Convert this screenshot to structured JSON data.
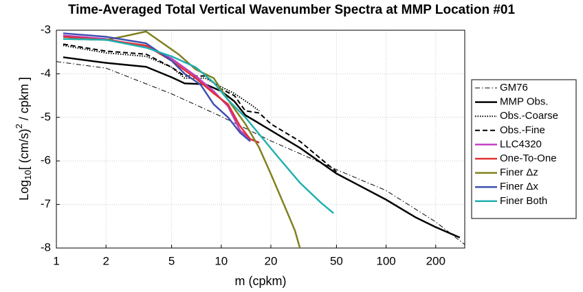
{
  "chart_data": {
    "type": "line",
    "title": "Time-Averaged Total Vertical Wavenumber Spectra at MMP Location #01",
    "x_label": "m (cpkm)",
    "y_label_parts": [
      "Log",
      "10",
      "[ (cm/s)",
      "2",
      " / cpkm ]"
    ],
    "xscale": "log",
    "xlim": [
      1,
      300
    ],
    "ylim": [
      -8,
      -3
    ],
    "xticks": [
      1,
      2,
      5,
      10,
      20,
      50,
      100,
      200
    ],
    "yticks": [
      -8,
      -7,
      -6,
      -5,
      -4,
      -3
    ],
    "grid": true,
    "legend": "outside right",
    "series": [
      {
        "name": "GM76",
        "color": "#000000",
        "style": "dashdot",
        "width": 1,
        "x": [
          1,
          2,
          5,
          10,
          20,
          50,
          100,
          200,
          300
        ],
        "values": [
          -3.72,
          -3.87,
          -4.46,
          -4.98,
          -5.54,
          -6.2,
          -6.68,
          -7.4,
          -7.92
        ]
      },
      {
        "name": "MMP Obs.",
        "color": "#000000",
        "style": "solid",
        "width": 2.5,
        "x": [
          1.1,
          2,
          3.5,
          5,
          6,
          8,
          10,
          12,
          14,
          16,
          20,
          30,
          50,
          100,
          150,
          200,
          280
        ],
        "values": [
          -3.62,
          -3.75,
          -3.84,
          -4.08,
          -4.22,
          -4.24,
          -4.4,
          -4.63,
          -4.95,
          -5.08,
          -5.3,
          -5.7,
          -6.29,
          -6.89,
          -7.29,
          -7.52,
          -7.76
        ]
      },
      {
        "name": "Obs.-Coarse",
        "color": "#000000",
        "style": "dotted",
        "width": 2,
        "x": [
          1.1,
          2,
          3.5,
          5,
          6,
          8,
          10,
          12,
          15,
          17
        ],
        "values": [
          -3.35,
          -3.52,
          -3.6,
          -3.85,
          -4.1,
          -4.1,
          -4.3,
          -4.45,
          -4.7,
          -4.85
        ]
      },
      {
        "name": "Obs.-Fine",
        "color": "#000000",
        "style": "dashed",
        "width": 2,
        "x": [
          1.1,
          2,
          3.5,
          5,
          6,
          8,
          10,
          12,
          14,
          17,
          20,
          30,
          50
        ],
        "values": [
          -3.32,
          -3.48,
          -3.55,
          -3.85,
          -4.05,
          -4.05,
          -4.35,
          -4.5,
          -4.85,
          -4.9,
          -5.15,
          -5.55,
          -6.25
        ]
      },
      {
        "name": "LLC4320",
        "color": "#c040c0",
        "style": "solid",
        "width": 2.5,
        "x": [
          1.1,
          2,
          3.5,
          5,
          7,
          9,
          11,
          13,
          15,
          17
        ],
        "values": [
          -3.12,
          -3.2,
          -3.38,
          -3.65,
          -4.05,
          -4.4,
          -4.75,
          -5.3,
          -5.5,
          -5.58
        ]
      },
      {
        "name": "One-To-One",
        "color": "#e03030",
        "style": "solid",
        "width": 2.5,
        "x": [
          1.1,
          2,
          3.5,
          5,
          7,
          9,
          11,
          13,
          15,
          17
        ],
        "values": [
          -3.15,
          -3.22,
          -3.35,
          -3.7,
          -4.1,
          -4.45,
          -4.7,
          -5.2,
          -5.5,
          -5.58
        ]
      },
      {
        "name": "Finer Δz",
        "color": "#808020",
        "style": "solid",
        "width": 2.5,
        "x": [
          1.1,
          2,
          2.5,
          3.5,
          5.5,
          7,
          9,
          11,
          14,
          17,
          20,
          24,
          28,
          30
        ],
        "values": [
          -3.2,
          -3.22,
          -3.15,
          -3.03,
          -3.55,
          -3.9,
          -4.1,
          -4.6,
          -5.15,
          -5.7,
          -6.3,
          -7.0,
          -7.6,
          -8
        ]
      },
      {
        "name": "Finer Δx",
        "color": "#4050b0",
        "style": "solid",
        "width": 2.5,
        "x": [
          1.1,
          2,
          3.5,
          5,
          6,
          7.5,
          9,
          11,
          13,
          15
        ],
        "values": [
          -3.07,
          -3.15,
          -3.3,
          -3.7,
          -4.0,
          -4.25,
          -4.7,
          -5.0,
          -5.35,
          -5.55
        ]
      },
      {
        "name": "Finer Both",
        "color": "#20b0b0",
        "style": "solid",
        "width": 2.5,
        "x": [
          1.1,
          2,
          3.5,
          5,
          7,
          9,
          11,
          14,
          18,
          22,
          30,
          40,
          48
        ],
        "values": [
          -3.2,
          -3.22,
          -3.4,
          -3.6,
          -3.85,
          -4.2,
          -4.6,
          -5.0,
          -5.5,
          -5.9,
          -6.5,
          -6.95,
          -7.2
        ]
      }
    ]
  }
}
